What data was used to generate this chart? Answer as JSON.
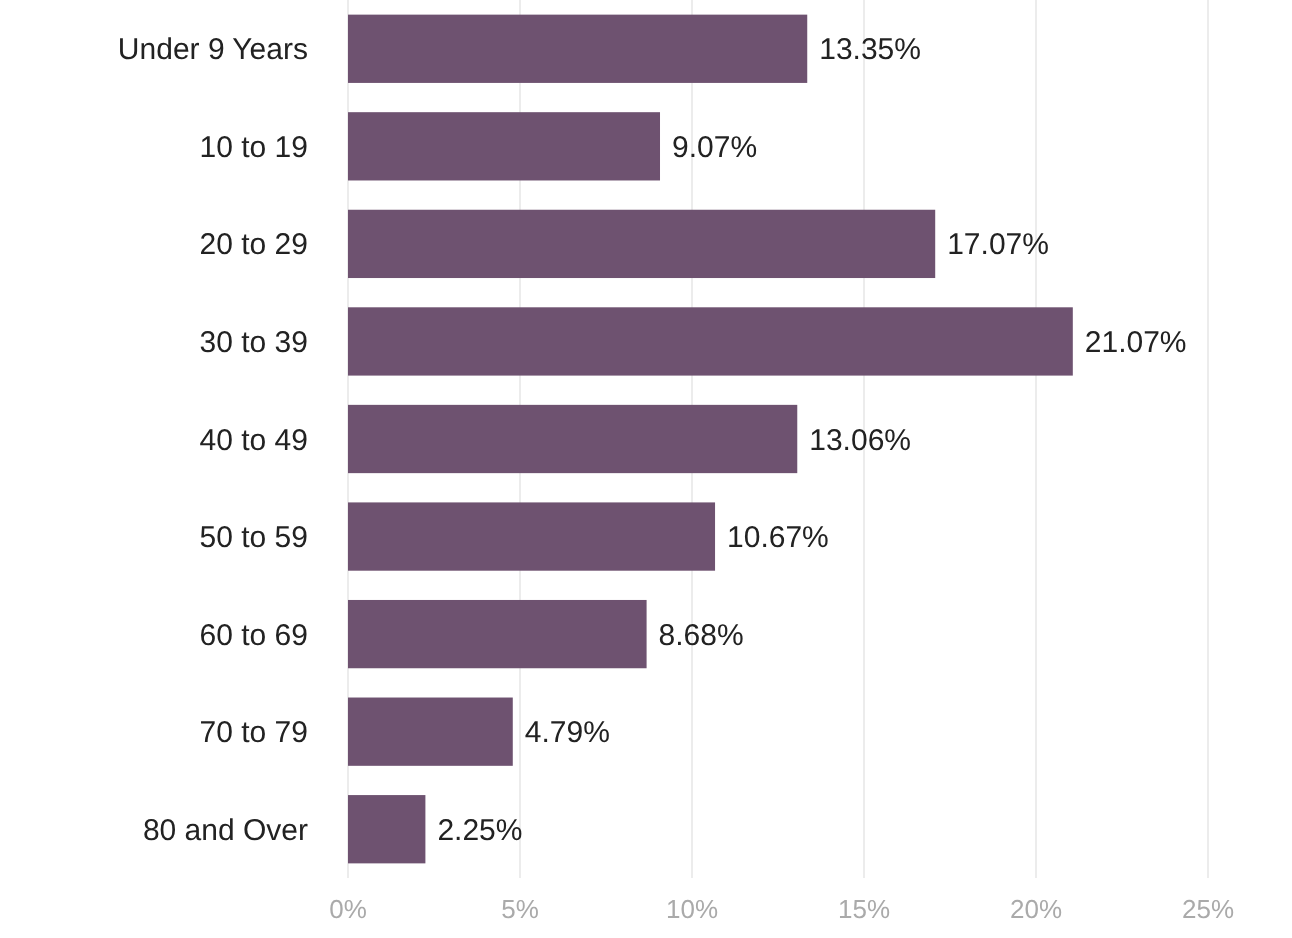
{
  "chart_data": {
    "type": "bar",
    "orientation": "horizontal",
    "categories": [
      "Under 9 Years",
      "10 to 19",
      "20 to 29",
      "30 to 39",
      "40 to 49",
      "50 to 59",
      "60 to 69",
      "70 to 79",
      "80 and Over"
    ],
    "values": [
      13.35,
      9.07,
      17.07,
      21.07,
      13.06,
      10.67,
      8.68,
      4.79,
      2.25
    ],
    "value_labels": [
      "13.35%",
      "9.07%",
      "17.07%",
      "21.07%",
      "13.06%",
      "10.67%",
      "8.68%",
      "4.79%",
      "2.25%"
    ],
    "color": "#6e5270",
    "xlim": [
      0,
      25
    ],
    "xticks": [
      {
        "value": 0,
        "label": "0%"
      },
      {
        "value": 5,
        "label": "5%"
      },
      {
        "value": 10,
        "label": "10%"
      },
      {
        "value": 15,
        "label": "15%"
      },
      {
        "value": 20,
        "label": "20%"
      },
      {
        "value": 25,
        "label": "25%"
      }
    ],
    "grid": "x"
  }
}
